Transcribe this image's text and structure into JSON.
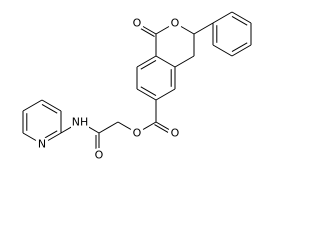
{
  "atoms": [
    {
      "label": "O"
    },
    {
      "label": "O"
    },
    {
      "label": "O"
    },
    {
      "label": "O"
    },
    {
      "label": "O"
    },
    {
      "label": "NH"
    },
    {
      "label": "N"
    }
  ]
}
